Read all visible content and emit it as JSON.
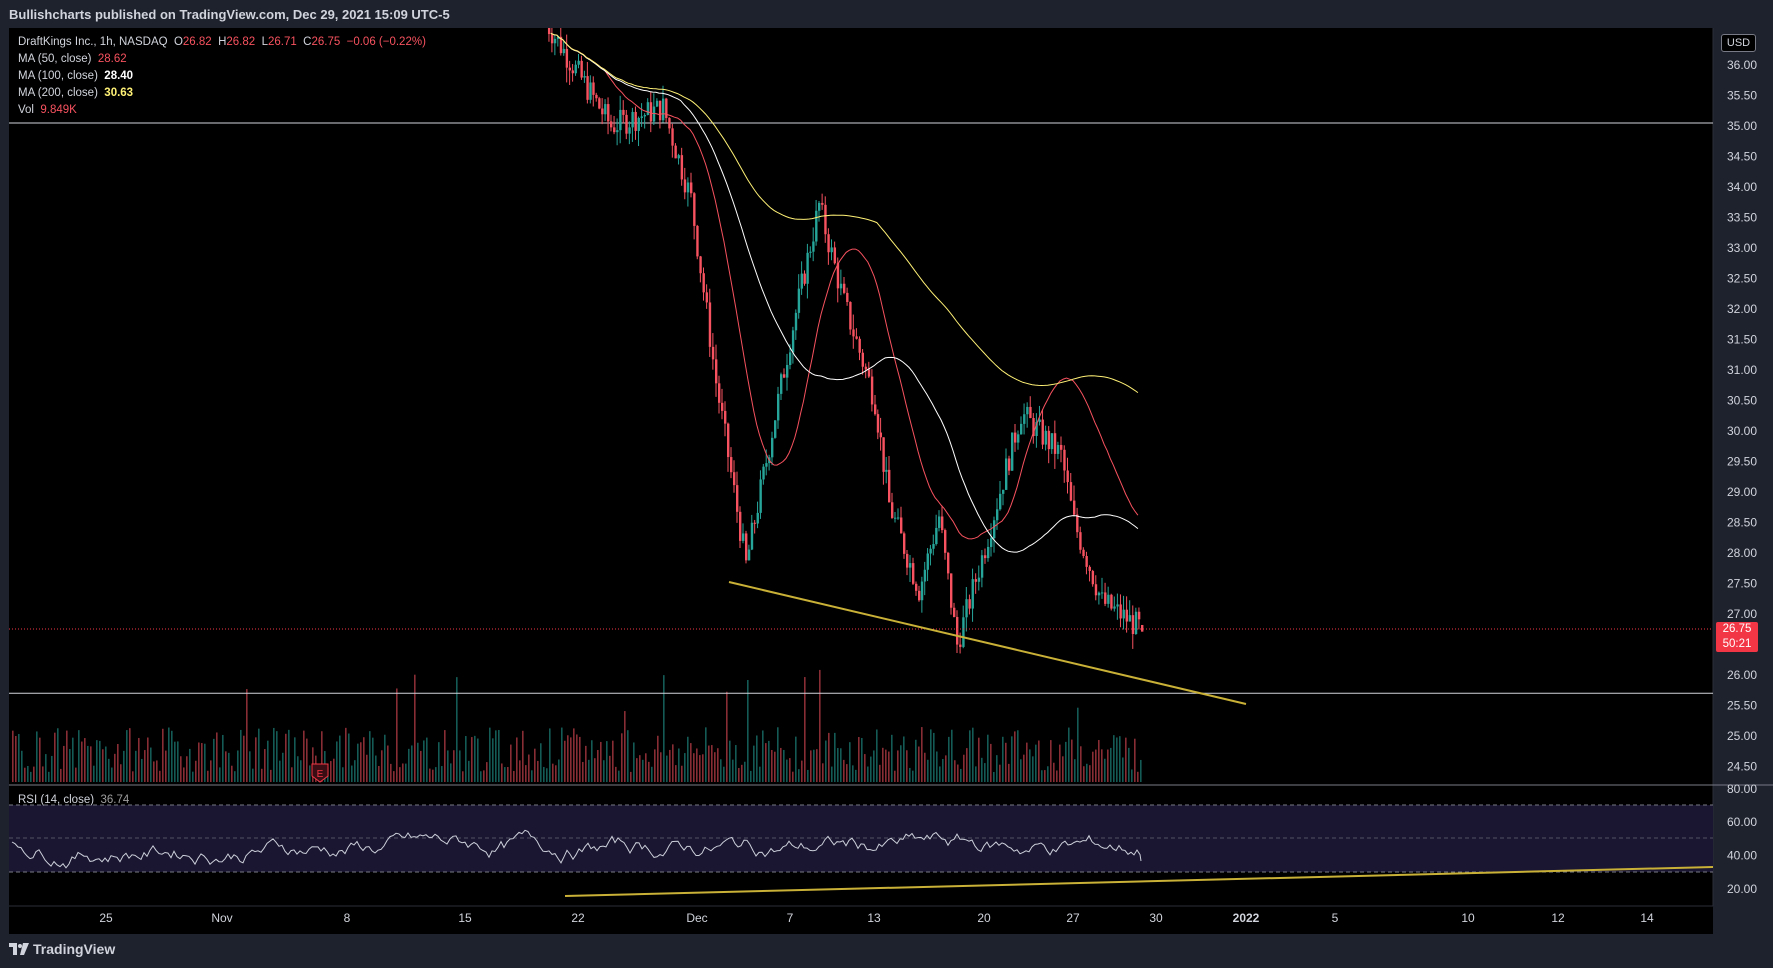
{
  "header": {
    "published": "Bullishcharts published on TradingView.com, Dec 29, 2021 15:09 UTC-5"
  },
  "legend": {
    "symbol": "DraftKings Inc., 1h, NASDAQ",
    "o_label": "O",
    "o": "26.82",
    "h_label": "H",
    "h": "26.82",
    "l_label": "L",
    "l": "26.71",
    "c_label": "C",
    "c": "26.75",
    "change": "−0.06 (−0.22%)",
    "ma50_label": "MA (50, close)",
    "ma50": "28.62",
    "ma100_label": "MA (100, close)",
    "ma100": "28.40",
    "ma200_label": "MA (200, close)",
    "ma200": "30.63",
    "vol_label": "Vol",
    "vol": "9.849K",
    "rsi_label": "RSI (14, close)",
    "rsi": "36.74"
  },
  "currency": "USD",
  "last_price": {
    "price": "26.75",
    "countdown": "50:21"
  },
  "footer": {
    "brand": "TradingView"
  },
  "colors": {
    "up": "#26a69a",
    "down": "#f7525f",
    "ma50": "#f7525f",
    "ma100": "#ffffff",
    "ma200": "#fff176",
    "trendline": "#c9b037",
    "background": "#000000"
  },
  "chart_data": {
    "type": "candlestick",
    "interval": "1h",
    "price_axis": {
      "ticks": [
        "24.50",
        "25.00",
        "25.50",
        "26.00",
        "26.50",
        "27.00",
        "27.50",
        "28.00",
        "28.50",
        "29.00",
        "29.50",
        "30.00",
        "30.50",
        "31.00",
        "31.50",
        "32.00",
        "32.50",
        "33.00",
        "33.50",
        "34.00",
        "34.50",
        "35.00",
        "35.50",
        "36.00"
      ],
      "range": [
        24.2,
        36.5
      ]
    },
    "rsi_axis": {
      "ticks": [
        "20.00",
        "40.00",
        "60.00",
        "80.00"
      ],
      "range": [
        16,
        80
      ],
      "bands": [
        30,
        50,
        70
      ]
    },
    "time_axis": [
      "25",
      "Nov",
      "8",
      "15",
      "22",
      "Dec",
      "7",
      "13",
      "20",
      "27",
      "30",
      "2022",
      "5",
      "10",
      "12",
      "14"
    ],
    "horizontal_levels": [
      35.05,
      25.7
    ],
    "close_path": [
      {
        "t": "Nov 20",
        "close": 36.7
      },
      {
        "t": "Nov 24",
        "close": 35.0
      },
      {
        "t": "Nov 26",
        "close": 35.3
      },
      {
        "t": "Nov 30",
        "close": 33.8
      },
      {
        "t": "Dec 2",
        "close": 30.8
      },
      {
        "t": "Dec 3",
        "close": 27.8
      },
      {
        "t": "Dec 6",
        "close": 30.0
      },
      {
        "t": "Dec 7",
        "close": 31.5
      },
      {
        "t": "Dec 9",
        "close": 33.7
      },
      {
        "t": "Dec 10",
        "close": 32.1
      },
      {
        "t": "Dec 13",
        "close": 30.5
      },
      {
        "t": "Dec 14",
        "close": 28.8
      },
      {
        "t": "Dec 16",
        "close": 27.4
      },
      {
        "t": "Dec 17",
        "close": 28.6
      },
      {
        "t": "Dec 18",
        "close": 26.5
      },
      {
        "t": "Dec 20",
        "close": 28.1
      },
      {
        "t": "Dec 22",
        "close": 30.3
      },
      {
        "t": "Dec 24",
        "close": 29.6
      },
      {
        "t": "Dec 27",
        "close": 28.5
      },
      {
        "t": "Dec 28",
        "close": 27.2
      },
      {
        "t": "Dec 29",
        "close": 26.75
      }
    ],
    "ma50_end": 28.62,
    "ma100_end": 28.4,
    "ma200_end": 30.63,
    "last_close": 26.75
  }
}
